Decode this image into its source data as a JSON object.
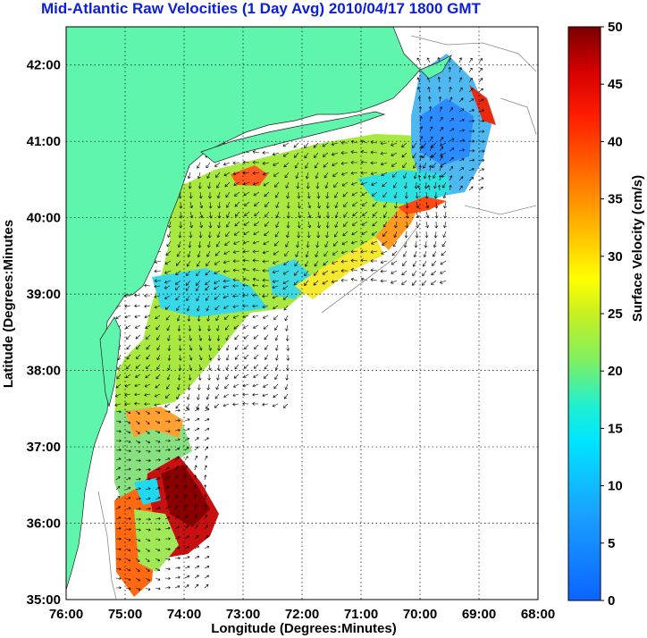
{
  "title": "Mid-Atlantic Raw Velocities (1 Day Avg) 2010/04/17 1800 GMT",
  "map": {
    "xlabel": "Longitude (Degrees:Minutes)",
    "ylabel": "Latitude (Degrees:Minutes",
    "lon_ticks": [
      "76:00",
      "75:00",
      "74:00",
      "73:00",
      "72:00",
      "71:00",
      "70:00",
      "69:00",
      "68:00"
    ],
    "lat_ticks": [
      "35:00",
      "36:00",
      "37:00",
      "38:00",
      "39:00",
      "40:00",
      "41:00",
      "42:00"
    ],
    "lon_range": [
      -76,
      -68
    ],
    "lat_range": [
      35,
      42.5
    ],
    "grid": true,
    "land_color": "#5ff5ad",
    "ocean_color": "#ffffff"
  },
  "colorbar": {
    "label": "Surface Velocity (cm/s)",
    "ticks": [
      "0",
      "5",
      "10",
      "15",
      "20",
      "25",
      "30",
      "35",
      "40",
      "45",
      "50"
    ],
    "range": [
      0,
      50
    ],
    "colormap": "jet"
  }
}
